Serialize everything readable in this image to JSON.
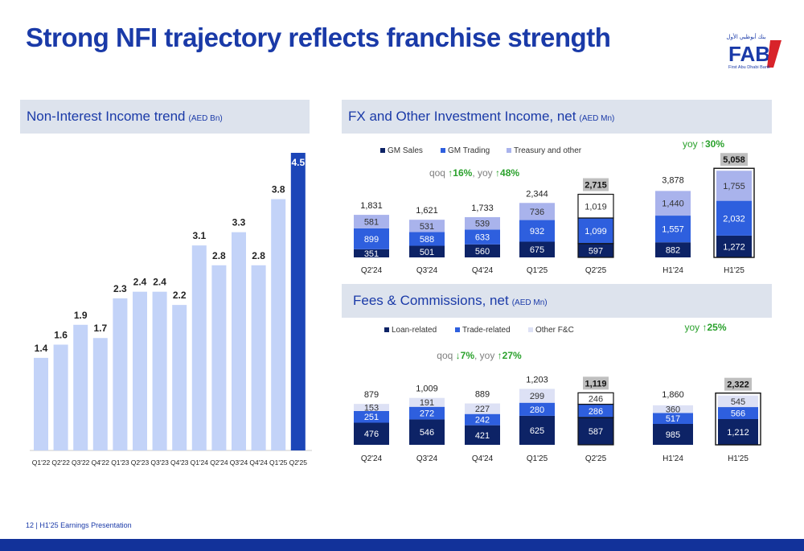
{
  "page": {
    "title": "Strong NFI trajectory reflects franchise strength",
    "footer": "12  | H1'25 Earnings Presentation",
    "logo": {
      "text": "FAB",
      "subtext": "First Abu Dhabi Bank",
      "arabic": "بنك أبوظبي الأول"
    }
  },
  "panels": {
    "nii": {
      "title": "Non-Interest Income trend",
      "unit": "(AED Bn)"
    },
    "fx": {
      "title": "FX and Other Investment Income, net",
      "unit": "(AED Mn)"
    },
    "fees": {
      "title": "Fees & Commissions, net",
      "unit": "(AED Mn)"
    }
  },
  "colors": {
    "navy": "#0d2366",
    "blue": "#2e5fde",
    "light": "#a9b3ec",
    "pale": "#dde1f5",
    "trend_light": "#c3d3f8",
    "trend_dark": "#1c46b8",
    "green": "#2aa12c"
  },
  "chart_data": [
    {
      "type": "bar",
      "title": "Non-Interest Income trend",
      "categories": [
        "Q1'22",
        "Q2'22",
        "Q3'22",
        "Q4'22",
        "Q1'23",
        "Q2'23",
        "Q3'23",
        "Q4'23",
        "Q1'24",
        "Q2'24",
        "Q3'24",
        "Q4'24",
        "Q1'25",
        "Q2'25"
      ],
      "values": [
        1.4,
        1.6,
        1.9,
        1.7,
        2.3,
        2.4,
        2.4,
        2.2,
        3.1,
        2.8,
        3.3,
        2.8,
        3.8,
        4.5
      ],
      "ylim": [
        0,
        4.5
      ]
    },
    {
      "type": "bar",
      "stacked": true,
      "title": "FX and Other Investment Income, net",
      "categories": [
        "Q2'24",
        "Q3'24",
        "Q4'24",
        "Q1'25",
        "Q2'25"
      ],
      "series": [
        {
          "name": "GM Sales",
          "values": [
            351,
            501,
            560,
            675,
            597
          ]
        },
        {
          "name": "GM Trading",
          "values": [
            899,
            588,
            633,
            932,
            1099
          ]
        },
        {
          "name": "Treasury and other",
          "values": [
            581,
            531,
            539,
            736,
            1019
          ]
        }
      ],
      "totals": [
        "1,831",
        "1,621",
        "1,733",
        "2,344",
        "2,715"
      ],
      "annotation": {
        "qoq": "16%",
        "yoy": "48%",
        "qoq_dir": "up",
        "yoy_dir": "up"
      },
      "half_year": {
        "categories": [
          "H1'24",
          "H1'25"
        ],
        "series": [
          [
            882,
            1272
          ],
          [
            1557,
            2032
          ],
          [
            1440,
            1755
          ]
        ],
        "totals": [
          "3,878",
          "5,058"
        ],
        "yoy": "30%",
        "yoy_dir": "up"
      }
    },
    {
      "type": "bar",
      "stacked": true,
      "title": "Fees & Commissions, net",
      "categories": [
        "Q2'24",
        "Q3'24",
        "Q4'24",
        "Q1'25",
        "Q2'25"
      ],
      "series": [
        {
          "name": "Loan-related",
          "values": [
            476,
            546,
            421,
            625,
            587
          ]
        },
        {
          "name": "Trade-related",
          "values": [
            251,
            272,
            242,
            280,
            286
          ]
        },
        {
          "name": "Other F&C",
          "values": [
            153,
            191,
            227,
            299,
            246
          ]
        }
      ],
      "totals": [
        "879",
        "1,009",
        "889",
        "1,203",
        "1,119"
      ],
      "annotation": {
        "qoq": "7%",
        "yoy": "27%",
        "qoq_dir": "down",
        "yoy_dir": "up"
      },
      "half_year": {
        "categories": [
          "H1'24",
          "H1'25"
        ],
        "series": [
          [
            985,
            1212
          ],
          [
            517,
            566
          ],
          [
            360,
            545
          ]
        ],
        "totals": [
          "1,860",
          "2,322"
        ],
        "yoy": "25%",
        "yoy_dir": "up"
      }
    }
  ]
}
